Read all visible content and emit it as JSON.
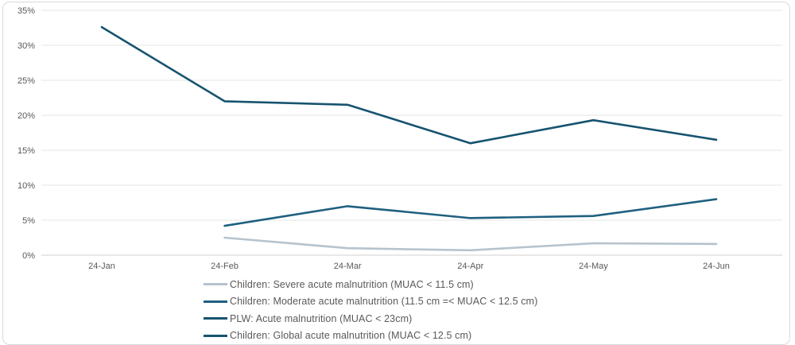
{
  "chart_data": {
    "type": "line",
    "title": "",
    "xlabel": "",
    "ylabel": "",
    "grid": true,
    "legend_position": "bottom",
    "x_categories": [
      "24-Jan",
      "24-Feb",
      "24-Mar",
      "24-Apr",
      "24-May",
      "24-Jun"
    ],
    "y_axis": {
      "min": 0,
      "max": 35,
      "step": 5,
      "ticks": [
        {
          "value": 0,
          "label": "0%"
        },
        {
          "value": 5,
          "label": "5%"
        },
        {
          "value": 10,
          "label": "10%"
        },
        {
          "value": 15,
          "label": "15%"
        },
        {
          "value": 20,
          "label": "20%"
        },
        {
          "value": 25,
          "label": "25%"
        },
        {
          "value": 30,
          "label": "30%"
        },
        {
          "value": 35,
          "label": "35%"
        }
      ]
    },
    "series": [
      {
        "id": "children-sam",
        "name": "Children: Severe acute malnutrition (MUAC < 11.5 cm)",
        "color": "#b6c3cd",
        "values": [
          null,
          2.5,
          1.0,
          0.7,
          1.7,
          1.6
        ]
      },
      {
        "id": "children-mam",
        "name": "Children: Moderate acute malnutrition (11.5 cm =< MUAC < 12.5 cm)",
        "color": "#1e6080",
        "values": [
          null,
          4.2,
          7.0,
          5.3,
          5.6,
          8.0
        ]
      },
      {
        "id": "plw-am",
        "name": "PLW: Acute malnutrition (MUAC < 23cm)",
        "color": "#175470",
        "values": [
          32.6,
          22.0,
          21.5,
          16.0,
          19.3,
          16.5
        ]
      },
      {
        "id": "clipped-legend-entry",
        "name": "Children: Global acute malnutrition (MUAC < 12.5 cm)",
        "color": "#175470",
        "values": [],
        "clipped_at_bottom": true
      }
    ]
  },
  "colors": {
    "gridline": "#e4e4e4",
    "zero_line": "#d2d2d2",
    "axis_text": "#595959",
    "frame_border": "#d9d9d9",
    "background": "#ffffff"
  }
}
